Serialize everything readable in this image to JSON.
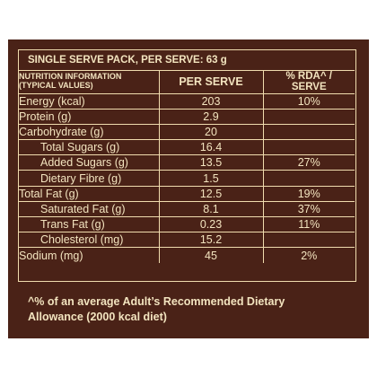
{
  "label": {
    "pack_title": "SINGLE SERVE PACK, PER SERVE: 63 g",
    "columns": {
      "name_line1": "NUTRITION INFORMATION",
      "name_line2": "(TYPICAL VALUES)",
      "per_serve": "PER SERVE",
      "rda_line1": "% RDA^ /",
      "rda_line2": "SERVE"
    },
    "rows": [
      {
        "name": "Energy (kcal)",
        "value": "203",
        "rda": "10%",
        "sub": false
      },
      {
        "name": "Protein (g)",
        "value": "2.9",
        "rda": "",
        "sub": false
      },
      {
        "name": "Carbohydrate (g)",
        "value": "20",
        "rda": "",
        "sub": false
      },
      {
        "name": "Total Sugars (g)",
        "value": "16.4",
        "rda": "",
        "sub": true
      },
      {
        "name": "Added Sugars (g)",
        "value": "13.5",
        "rda": "27%",
        "sub": true
      },
      {
        "name": "Dietary Fibre (g)",
        "value": "1.5",
        "rda": "",
        "sub": true
      },
      {
        "name": "Total Fat (g)",
        "value": "12.5",
        "rda": "19%",
        "sub": false
      },
      {
        "name": "Saturated Fat (g)",
        "value": "8.1",
        "rda": "37%",
        "sub": true
      },
      {
        "name": "Trans Fat (g)",
        "value": "0.23",
        "rda": "11%",
        "sub": true
      },
      {
        "name": "Cholesterol (mg)",
        "value": "15.2",
        "rda": "",
        "sub": true
      },
      {
        "name": "Sodium (mg)",
        "value": "45",
        "rda": "2%",
        "sub": false
      }
    ],
    "footnote_line1": "^% of an average Adult’s Recommended Dietary",
    "footnote_line2": "Allowance (2000 kcal diet)"
  },
  "colors": {
    "background": "#4a2217",
    "text": "#f3e4bf",
    "lines": "#f0dcae"
  }
}
